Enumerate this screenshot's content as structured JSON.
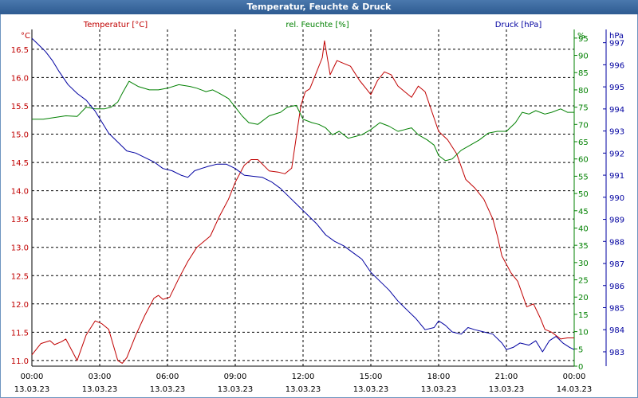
{
  "window": {
    "title": "Temperatur, Feuchte & Druck"
  },
  "chart_data": {
    "type": "line",
    "title": "Temperatur, Feuchte & Druck",
    "x_tick_labels": [
      {
        "time": "00:00",
        "date": "13.03.23"
      },
      {
        "time": "03:00",
        "date": "13.03.23"
      },
      {
        "time": "06:00",
        "date": "13.03.23"
      },
      {
        "time": "09:00",
        "date": "13.03.23"
      },
      {
        "time": "12:00",
        "date": "13.03.23"
      },
      {
        "time": "15:00",
        "date": "13.03.23"
      },
      {
        "time": "18:00",
        "date": "13.03.23"
      },
      {
        "time": "21:00",
        "date": "13.03.23"
      },
      {
        "time": "00:00",
        "date": "14.03.23"
      }
    ],
    "xlim": [
      0,
      24
    ],
    "grid": true,
    "axes": {
      "temp": {
        "unit": "°C",
        "label": "Temperatur [°C]",
        "ylim": [
          10.9,
          16.85
        ],
        "ticks": [
          "11.0",
          "11.5",
          "12.0",
          "12.5",
          "13.0",
          "13.5",
          "14.0",
          "14.5",
          "15.0",
          "15.5",
          "16.0",
          "16.5"
        ],
        "color": "#c00000"
      },
      "hum": {
        "unit": "%",
        "label": "rel. Feuchte [%]",
        "ylim": [
          0,
          97.5
        ],
        "ticks": [
          "0",
          "5",
          "10",
          "15",
          "20",
          "25",
          "30",
          "35",
          "40",
          "45",
          "50",
          "55",
          "60",
          "65",
          "70",
          "75",
          "80",
          "85",
          "90",
          "95"
        ],
        "color": "#008000"
      },
      "press": {
        "unit": "hPa",
        "label": "Druck [hPa]",
        "ylim": [
          982.35,
          997.6
        ],
        "ticks": [
          "983",
          "984",
          "985",
          "986",
          "987",
          "988",
          "989",
          "990",
          "991",
          "992",
          "993",
          "994",
          "995",
          "996",
          "997"
        ],
        "color": "#0000a0"
      }
    },
    "series": [
      {
        "name": "Temperatur [°C]",
        "axis": "temp",
        "color": "#c00000",
        "x": [
          0,
          0.4,
          0.8,
          1.0,
          1.3,
          1.5,
          2.0,
          2.4,
          2.8,
          3.1,
          3.4,
          3.8,
          4.0,
          4.2,
          4.6,
          5.0,
          5.4,
          5.6,
          5.8,
          6.1,
          6.5,
          6.9,
          7.3,
          7.6,
          7.9,
          8.3,
          8.7,
          9.0,
          9.4,
          9.7,
          10.0,
          10.5,
          10.9,
          11.2,
          11.5,
          11.9,
          12.1,
          12.3,
          12.6,
          12.85,
          12.95,
          13.2,
          13.5,
          13.8,
          14.1,
          14.5,
          14.8,
          15.0,
          15.3,
          15.6,
          15.9,
          16.2,
          16.5,
          16.8,
          17.1,
          17.4,
          17.7,
          18.0,
          18.4,
          18.8,
          19.2,
          19.6,
          20.0,
          20.4,
          20.6,
          20.8,
          21.2,
          21.5,
          21.9,
          22.2,
          22.5,
          22.7,
          23.0,
          23.4,
          23.7,
          24.0
        ],
        "y": [
          11.1,
          11.3,
          11.35,
          11.28,
          11.33,
          11.38,
          11.0,
          11.45,
          11.7,
          11.65,
          11.55,
          11.0,
          10.95,
          11.05,
          11.45,
          11.8,
          12.1,
          12.15,
          12.08,
          12.12,
          12.45,
          12.75,
          13.0,
          13.1,
          13.2,
          13.55,
          13.85,
          14.15,
          14.45,
          14.55,
          14.55,
          14.35,
          14.33,
          14.3,
          14.4,
          15.5,
          15.75,
          15.8,
          16.1,
          16.35,
          16.65,
          16.05,
          16.3,
          16.25,
          16.2,
          15.95,
          15.8,
          15.7,
          15.95,
          16.1,
          16.05,
          15.85,
          15.75,
          15.65,
          15.85,
          15.75,
          15.4,
          15.05,
          14.9,
          14.65,
          14.2,
          14.05,
          13.85,
          13.5,
          13.2,
          12.85,
          12.55,
          12.4,
          11.95,
          12.0,
          11.75,
          11.55,
          11.5,
          11.38,
          11.4,
          11.4
        ]
      },
      {
        "name": "rel. Feuchte [%]",
        "axis": "hum",
        "color": "#008000",
        "x": [
          0,
          0.5,
          1.0,
          1.5,
          2.0,
          2.4,
          2.8,
          3.2,
          3.5,
          3.8,
          4.0,
          4.3,
          4.7,
          5.2,
          5.6,
          6.0,
          6.5,
          7.0,
          7.3,
          7.7,
          8.0,
          8.3,
          8.7,
          9.0,
          9.3,
          9.6,
          10.0,
          10.5,
          11.0,
          11.3,
          11.7,
          12.0,
          12.4,
          12.7,
          13.0,
          13.3,
          13.6,
          14.0,
          14.3,
          14.6,
          15.0,
          15.4,
          15.8,
          16.2,
          16.5,
          16.8,
          17.1,
          17.5,
          17.8,
          18.0,
          18.3,
          18.6,
          19.0,
          19.4,
          19.8,
          20.2,
          20.6,
          21.0,
          21.4,
          21.7,
          22.0,
          22.3,
          22.7,
          23.0,
          23.4,
          23.7,
          24.0
        ],
        "y": [
          71.5,
          71.5,
          72.0,
          72.5,
          72.3,
          75.0,
          74.5,
          74.5,
          75.0,
          76.5,
          79.0,
          82.5,
          81.0,
          80.0,
          80.0,
          80.5,
          81.5,
          81.0,
          80.5,
          79.5,
          80.0,
          79.0,
          77.5,
          75.0,
          72.5,
          70.5,
          70.0,
          72.5,
          73.5,
          75.0,
          75.5,
          71.5,
          70.5,
          70.0,
          69.0,
          67.0,
          68.0,
          66.0,
          66.5,
          67.0,
          68.5,
          70.5,
          69.5,
          68.0,
          68.5,
          69.0,
          67.0,
          65.5,
          64.0,
          61.0,
          59.5,
          60.0,
          62.5,
          64.0,
          65.5,
          67.5,
          68.0,
          68.0,
          70.5,
          73.5,
          73.0,
          74.0,
          73.0,
          73.5,
          74.5,
          73.5,
          73.5
        ]
      },
      {
        "name": "Druck [hPa]",
        "axis": "press",
        "color": "#0000a0",
        "x": [
          0,
          0.3,
          0.6,
          0.9,
          1.2,
          1.6,
          2.0,
          2.4,
          2.8,
          3.1,
          3.4,
          3.8,
          4.2,
          4.6,
          5.0,
          5.4,
          5.8,
          6.2,
          6.6,
          6.9,
          7.2,
          7.5,
          7.8,
          8.2,
          8.6,
          9.0,
          9.4,
          9.8,
          10.2,
          10.6,
          11.0,
          11.4,
          11.8,
          12.2,
          12.6,
          13.0,
          13.4,
          13.8,
          14.2,
          14.6,
          15.0,
          15.4,
          15.8,
          16.2,
          16.6,
          17.0,
          17.4,
          17.8,
          18.0,
          18.3,
          18.6,
          19.0,
          19.3,
          19.6,
          20.0,
          20.4,
          20.8,
          21.0,
          21.3,
          21.6,
          22.0,
          22.3,
          22.6,
          22.9,
          23.2,
          23.5,
          23.8,
          24.0
        ],
        "y": [
          997.2,
          996.9,
          996.6,
          996.2,
          995.7,
          995.1,
          994.7,
          994.4,
          993.9,
          993.4,
          992.9,
          992.5,
          992.1,
          992.0,
          991.8,
          991.6,
          991.3,
          991.2,
          991.0,
          990.9,
          991.2,
          991.3,
          991.4,
          991.5,
          991.5,
          991.3,
          991.0,
          990.95,
          990.9,
          990.7,
          990.4,
          990.0,
          989.6,
          989.2,
          988.8,
          988.3,
          988.0,
          987.8,
          987.5,
          987.2,
          986.6,
          986.2,
          985.8,
          985.3,
          984.9,
          984.5,
          984.0,
          984.1,
          984.4,
          984.2,
          983.9,
          983.8,
          984.1,
          984.0,
          983.9,
          983.8,
          983.4,
          983.1,
          983.2,
          983.4,
          983.3,
          983.5,
          983.0,
          983.5,
          983.7,
          983.4,
          983.2,
          983.1
        ]
      }
    ]
  }
}
